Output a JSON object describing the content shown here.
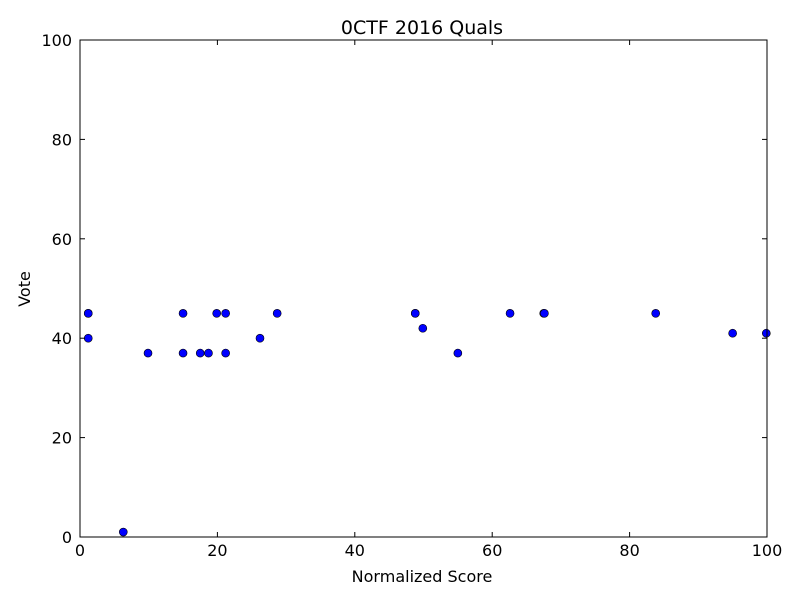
{
  "chart_data": {
    "type": "scatter",
    "title": "0CTF 2016 Quals",
    "xlabel": "Normalized Score",
    "ylabel": "Vote",
    "xlim": [
      0,
      100
    ],
    "ylim": [
      0,
      100
    ],
    "x_ticks": [
      0,
      20,
      40,
      60,
      80,
      100
    ],
    "y_ticks": [
      0,
      20,
      40,
      60,
      80,
      100
    ],
    "grid": false,
    "legend": "none",
    "marker_color": "#0000ff",
    "marker_edge_color": "#000000",
    "series": [
      {
        "points": [
          {
            "x": 1.2,
            "y": 45
          },
          {
            "x": 1.2,
            "y": 45
          },
          {
            "x": 1.2,
            "y": 40
          },
          {
            "x": 6.3,
            "y": 1
          },
          {
            "x": 9.9,
            "y": 37
          },
          {
            "x": 15.0,
            "y": 45
          },
          {
            "x": 15.0,
            "y": 37
          },
          {
            "x": 17.5,
            "y": 37
          },
          {
            "x": 18.7,
            "y": 37
          },
          {
            "x": 19.9,
            "y": 45
          },
          {
            "x": 21.2,
            "y": 45
          },
          {
            "x": 21.2,
            "y": 37
          },
          {
            "x": 26.2,
            "y": 40
          },
          {
            "x": 28.7,
            "y": 45
          },
          {
            "x": 48.8,
            "y": 45
          },
          {
            "x": 48.8,
            "y": 45
          },
          {
            "x": 49.9,
            "y": 42
          },
          {
            "x": 55.0,
            "y": 37
          },
          {
            "x": 62.6,
            "y": 45
          },
          {
            "x": 67.5,
            "y": 45
          },
          {
            "x": 67.6,
            "y": 45
          },
          {
            "x": 83.8,
            "y": 45
          },
          {
            "x": 95.0,
            "y": 41
          },
          {
            "x": 99.9,
            "y": 41
          }
        ]
      }
    ]
  }
}
